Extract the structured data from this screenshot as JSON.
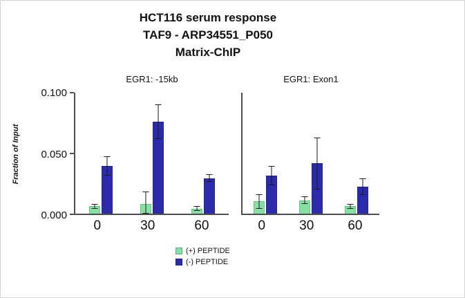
{
  "title": {
    "line1": "HCT116 serum response",
    "line2": "TAF9 - ARP34551_P050",
    "line3": "Matrix-ChIP"
  },
  "axis": {
    "ylabel": "Fraction of Input",
    "yticks": [
      "0.100",
      "0.050",
      "0.000"
    ]
  },
  "legend": [
    {
      "label": "(+) PEPTIDE",
      "color": "#86e0a4"
    },
    {
      "label": "(-) PEPTIDE",
      "color": "#2b2bab"
    }
  ],
  "chart_data": {
    "type": "bar",
    "title": "HCT116 serum response TAF9 - ARP34551_P050 Matrix-ChIP",
    "ylabel": "Fraction of Input",
    "ylim": [
      0,
      0.1
    ],
    "yticks": [
      0.0,
      0.05,
      0.1
    ],
    "grid": false,
    "legend_position": "bottom",
    "error_bar_color": "#1a1a1a",
    "panels": [
      {
        "title": "EGR1: -15kb",
        "categories": [
          "0",
          "30",
          "60"
        ],
        "series": [
          {
            "name": "(+) PEPTIDE",
            "color": "#86e0a4",
            "values": [
              0.006,
              0.008,
              0.004
            ],
            "errors": [
              0.002,
              0.01,
              0.002
            ]
          },
          {
            "name": "(-) PEPTIDE",
            "color": "#2b2bab",
            "values": [
              0.039,
              0.075,
              0.029
            ],
            "errors": [
              0.008,
              0.014,
              0.003
            ]
          }
        ]
      },
      {
        "title": "EGR1: Exon1",
        "categories": [
          "0",
          "30",
          "60"
        ],
        "series": [
          {
            "name": "(+) PEPTIDE",
            "color": "#86e0a4",
            "values": [
              0.01,
              0.011,
              0.006
            ],
            "errors": [
              0.006,
              0.003,
              0.002
            ]
          },
          {
            "name": "(-) PEPTIDE",
            "color": "#2b2bab",
            "values": [
              0.031,
              0.041,
              0.022
            ],
            "errors": [
              0.008,
              0.021,
              0.007
            ]
          }
        ]
      }
    ]
  }
}
